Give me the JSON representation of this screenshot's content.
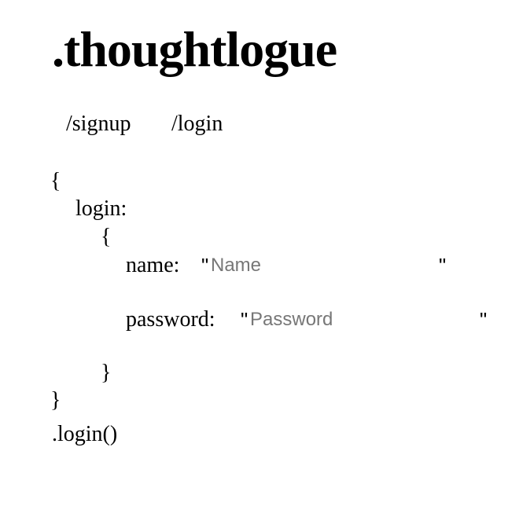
{
  "brand": {
    "title": ".thoughtlogue"
  },
  "nav": {
    "signup_label": "/signup",
    "login_label": "/login"
  },
  "form": {
    "open_brace": "{",
    "login_key": "login:",
    "inner_open_brace": "{",
    "name": {
      "key": "name:",
      "open_quote": "\"",
      "placeholder": "Name",
      "value": "",
      "close_quote": "\""
    },
    "password": {
      "key": "password:",
      "open_quote": "\"",
      "placeholder": "Password",
      "value": "",
      "close_quote": "\""
    },
    "inner_close_brace": "}",
    "close_brace": "}",
    "submit_label": ".login()"
  }
}
